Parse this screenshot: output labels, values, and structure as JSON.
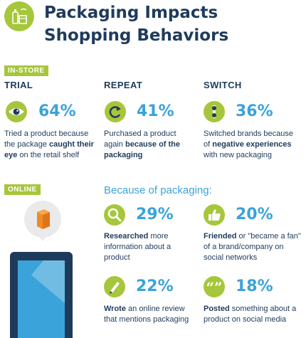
{
  "header": {
    "title_line1": "Packaging Impacts",
    "title_line2": "Shopping Behaviors",
    "icon": "shopping-products-icon"
  },
  "instore": {
    "tag": "IN-STORE",
    "columns": [
      {
        "heading": "TRIAL",
        "percent": "64%",
        "icon": "eye-icon",
        "desc_pre": "Tried a product because the package ",
        "desc_bold": "caught their eye",
        "desc_post": " on the retail shelf"
      },
      {
        "heading": "REPEAT",
        "percent": "41%",
        "icon": "repeat-arrow-icon",
        "desc_pre": "Purchased a product again ",
        "desc_bold": "because of the packaging",
        "desc_post": ""
      },
      {
        "heading": "SWITCH",
        "percent": "36%",
        "icon": "switch-icon",
        "desc_pre": "Switched brands because of ",
        "desc_bold": "negative experiences",
        "desc_post": " with new packaging"
      }
    ]
  },
  "online": {
    "tag": "ONLINE",
    "subheading": "Because of packaging:",
    "stats": [
      {
        "percent": "29%",
        "icon": "magnifier-icon",
        "desc_bold": "Researched",
        "desc_post": " more information about a product"
      },
      {
        "percent": "20%",
        "icon": "thumbs-up-icon",
        "desc_bold": "Friended",
        "desc_post": " or \"became a fan\" of a brand/company on social networks"
      },
      {
        "percent": "22%",
        "icon": "pencil-icon",
        "desc_bold": "Wrote",
        "desc_post": " an online review that mentions packaging"
      },
      {
        "percent": "18%",
        "icon": "quote-icon",
        "desc_bold": "Posted",
        "desc_post": " something about a product on social media"
      }
    ]
  },
  "colors": {
    "navy": "#1f3b5c",
    "blue": "#3aa3d9",
    "green": "#a6c63b",
    "orange": "#f08a24"
  }
}
